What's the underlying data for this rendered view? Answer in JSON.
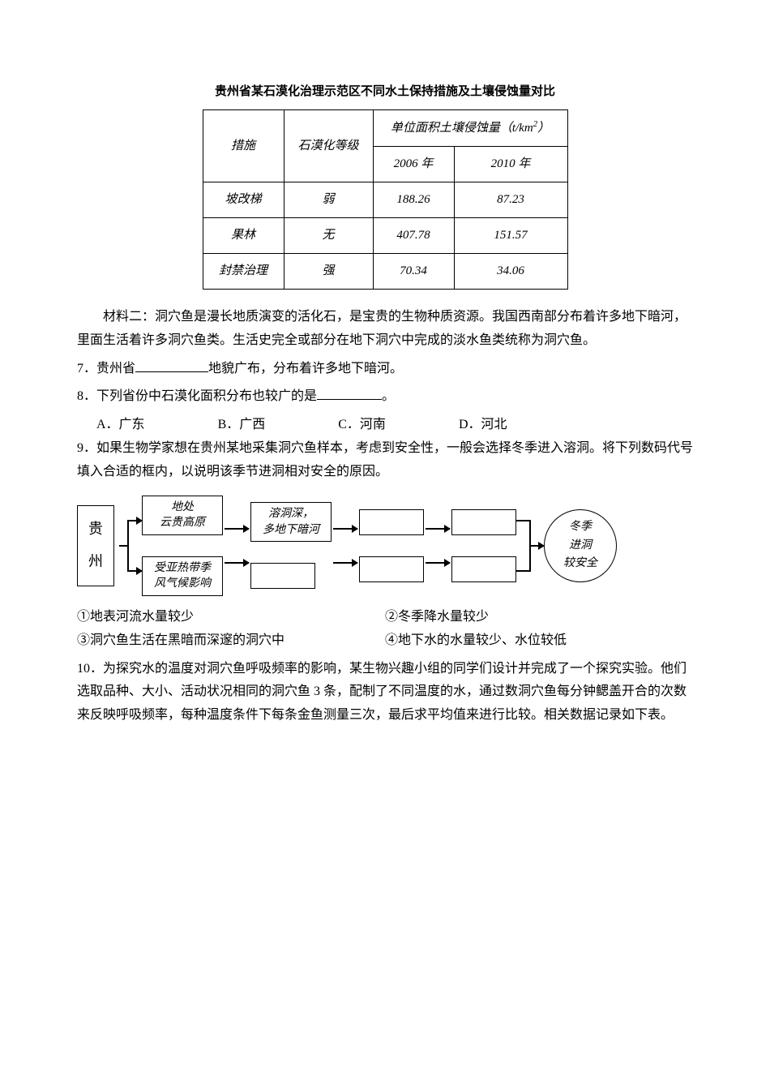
{
  "table_caption": "贵州省某石漠化治理示范区不同水土保持措施及土壤侵蚀量对比",
  "table": {
    "header": {
      "measure": "措施",
      "level": "石漠化等级",
      "unit": "单位面积土壤侵蚀量（t/km",
      "unit_sup": "2",
      "unit_close": "）",
      "year1": "2006 年",
      "year2": "2010 年"
    },
    "rows": [
      {
        "measure": "坡改梯",
        "level": "弱",
        "y1": "188.26",
        "y2": "87.23"
      },
      {
        "measure": "果林",
        "level": "无",
        "y1": "407.78",
        "y2": "151.57"
      },
      {
        "measure": "封禁治理",
        "level": "强",
        "y1": "70.34",
        "y2": "34.06"
      }
    ]
  },
  "material2": "材料二：洞穴鱼是漫长地质演变的活化石，是宝贵的生物种质资源。我国西南部分布着许多地下暗河，里面生活着许多洞穴鱼类。生活史完全或部分在地下洞穴中完成的淡水鱼类统称为洞穴鱼。",
  "q7_pre": "7．贵州省",
  "q7_post": "地貌广布，分布着许多地下暗河。",
  "q8_pre": "8．下列省份中石漠化面积分布也较广的是",
  "q8_post": "。",
  "q8_options": {
    "a": "A．广东",
    "b": "B．广西",
    "c": "C．河南",
    "d": "D．河北"
  },
  "q9": "9．如果生物学家想在贵州某地采集洞穴鱼样本，考虑到安全性，一般会选择冬季进入溶洞。将下列数码代号填入合适的框内，以说明该季节进洞相对安全的原因。",
  "diagram": {
    "guizhou_1": "贵",
    "guizhou_2": "州",
    "box_top": "地处\n云贵高原",
    "box_bot": "受亚热带季\n风气候影响",
    "box_mid": "溶洞深，\n多地下暗河",
    "ellipse": "冬季\n进洞\n较安全"
  },
  "q9_opts": {
    "o1": "①地表河流水量较少",
    "o2": "②冬季降水量较少",
    "o3": "③洞穴鱼生活在黑暗而深邃的洞穴中",
    "o4": "④地下水的水量较少、水位较低"
  },
  "q10": "10．为探究水的温度对洞穴鱼呼吸频率的影响，某生物兴趣小组的同学们设计并完成了一个探究实验。他们选取品种、大小、活动状况相同的洞穴鱼 3 条，配制了不同温度的水，通过数洞穴鱼每分钟鳃盖开合的次数来反映呼吸频率，每种温度条件下每条金鱼测量三次，最后求平均值来进行比较。相关数据记录如下表。"
}
